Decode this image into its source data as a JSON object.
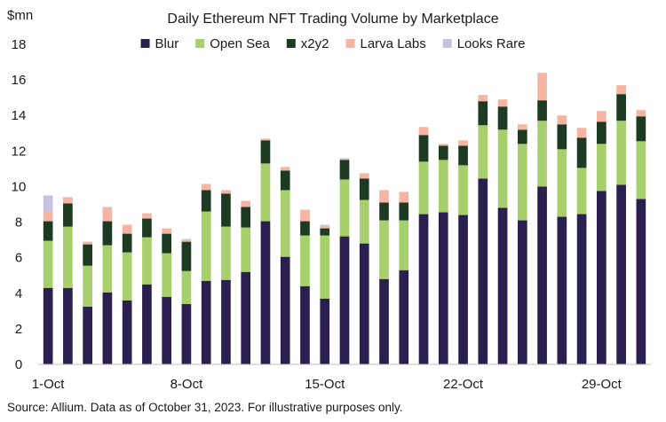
{
  "chart_data": {
    "type": "bar",
    "stacked": true,
    "title": "Daily Ethereum NFT Trading Volume by Marketplace",
    "ylabel": "$mn",
    "xlabel": "",
    "ylim": [
      0,
      18
    ],
    "yticks": [
      0,
      2,
      4,
      6,
      8,
      10,
      12,
      14,
      16,
      18
    ],
    "xtick_labels": [
      {
        "index": 0,
        "label": "1-Oct"
      },
      {
        "index": 7,
        "label": "8-Oct"
      },
      {
        "index": 14,
        "label": "15-Oct"
      },
      {
        "index": 21,
        "label": "22-Oct"
      },
      {
        "index": 28,
        "label": "29-Oct"
      }
    ],
    "grid": false,
    "legend_position": "top-center",
    "categories": [
      "1-Oct",
      "2-Oct",
      "3-Oct",
      "4-Oct",
      "5-Oct",
      "6-Oct",
      "7-Oct",
      "8-Oct",
      "9-Oct",
      "10-Oct",
      "11-Oct",
      "12-Oct",
      "13-Oct",
      "14-Oct",
      "15-Oct",
      "16-Oct",
      "17-Oct",
      "18-Oct",
      "19-Oct",
      "20-Oct",
      "21-Oct",
      "22-Oct",
      "23-Oct",
      "24-Oct",
      "25-Oct",
      "26-Oct",
      "27-Oct",
      "28-Oct",
      "29-Oct",
      "30-Oct",
      "31-Oct"
    ],
    "series": [
      {
        "name": "Blur",
        "color": "#2a1f4e",
        "values": [
          4.3,
          4.3,
          3.25,
          4.05,
          3.6,
          4.5,
          3.8,
          3.4,
          4.7,
          4.75,
          5.2,
          8.05,
          6.05,
          4.4,
          3.7,
          7.2,
          6.8,
          4.8,
          5.3,
          8.45,
          8.55,
          8.4,
          10.45,
          8.8,
          8.1,
          10.0,
          8.3,
          8.45,
          9.75,
          10.1,
          9.3
        ]
      },
      {
        "name": "Open Sea",
        "color": "#a7cf6b",
        "values": [
          2.65,
          3.45,
          2.3,
          2.65,
          2.7,
          2.65,
          2.45,
          1.85,
          3.9,
          3.0,
          2.5,
          3.25,
          3.75,
          2.85,
          3.55,
          3.2,
          2.45,
          3.3,
          2.8,
          2.95,
          2.95,
          2.8,
          3.0,
          4.4,
          4.3,
          3.7,
          3.8,
          2.6,
          2.65,
          3.6,
          3.25
        ]
      },
      {
        "name": "x2y2",
        "color": "#1d3a22",
        "values": [
          1.1,
          1.3,
          1.2,
          1.35,
          1.05,
          1.05,
          1.1,
          1.65,
          1.2,
          1.85,
          1.15,
          1.3,
          1.1,
          0.8,
          0.4,
          1.1,
          1.2,
          1.0,
          1.0,
          1.5,
          0.8,
          1.1,
          1.35,
          1.3,
          0.8,
          1.15,
          1.4,
          1.7,
          1.25,
          1.5,
          1.4
        ]
      },
      {
        "name": "Larva Labs",
        "color": "#f5b5a2",
        "values": [
          0.55,
          0.35,
          0.15,
          0.75,
          0.5,
          0.3,
          0.3,
          0.1,
          0.35,
          0.2,
          0.35,
          0.1,
          0.2,
          0.65,
          0.15,
          0.05,
          0.3,
          0.7,
          0.6,
          0.45,
          0.1,
          0.3,
          0.35,
          0.4,
          0.3,
          1.55,
          0.5,
          0.55,
          0.6,
          0.5,
          0.35
        ]
      },
      {
        "name": "Looks Rare",
        "color": "#c6c3e2",
        "values": [
          0.9,
          0.0,
          0.0,
          0.05,
          0.0,
          0.0,
          0.0,
          0.05,
          0.0,
          0.0,
          0.0,
          0.0,
          0.0,
          0.0,
          0.05,
          0.05,
          0.0,
          0.0,
          0.0,
          0.0,
          0.0,
          0.0,
          0.0,
          0.0,
          0.0,
          0.0,
          0.0,
          0.0,
          0.0,
          0.0,
          0.0
        ]
      }
    ]
  },
  "source_note": "Source: Allium. Data as of October 31, 2023. For illustrative purposes only."
}
